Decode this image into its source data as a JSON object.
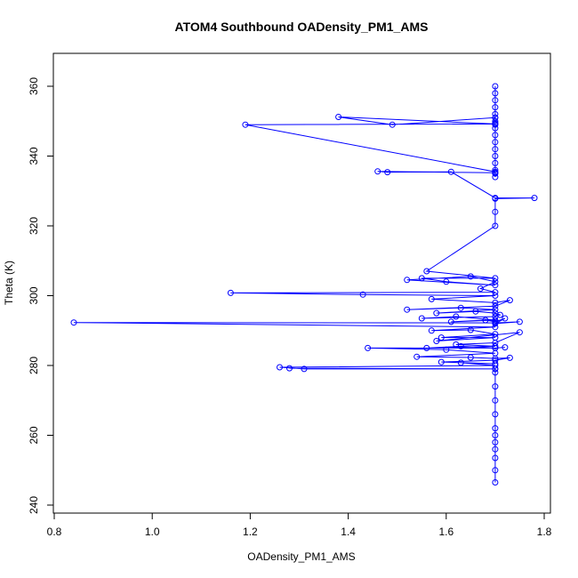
{
  "chart_data": {
    "type": "scatter",
    "title": "ATOM4 Southbound OADensity_PM1_AMS",
    "xlabel": "OADensity_PM1_AMS",
    "ylabel": "Theta (K)",
    "xlim": [
      0.8,
      1.8
    ],
    "ylim": [
      240,
      370
    ],
    "xticks": [
      "0.8",
      "1.0",
      "1.2",
      "1.4",
      "1.6",
      "1.8"
    ],
    "yticks": [
      "240",
      "260",
      "280",
      "300",
      "320",
      "340",
      "360"
    ],
    "grid": false,
    "legend": "none",
    "color": "#0000ff",
    "style": "points connected by lines",
    "series": [
      {
        "x": [
          1.7,
          1.7,
          1.7,
          1.7,
          1.7,
          1.7,
          1.7,
          1.7,
          1.7,
          1.7,
          1.7,
          1.7,
          1.7,
          1.7,
          1.7,
          1.7,
          1.7,
          1.7,
          1.7,
          1.49,
          1.38,
          1.7,
          1.19,
          1.7,
          1.7,
          1.46,
          1.48,
          1.61,
          1.7,
          1.78,
          1.7,
          1.7,
          1.7,
          1.56,
          1.7,
          1.55,
          1.6,
          1.7,
          1.52,
          1.65,
          1.7,
          1.67,
          1.7,
          1.16,
          1.43,
          1.7,
          1.57,
          1.7,
          1.73,
          1.7,
          1.52,
          1.63,
          1.7,
          1.58,
          1.66,
          1.7,
          1.71,
          1.7,
          1.55,
          1.62,
          1.7,
          1.61,
          1.68,
          1.7,
          1.72,
          1.7,
          1.75,
          1.7,
          0.84,
          1.7,
          1.57,
          1.65,
          1.7,
          1.59,
          1.7,
          1.58,
          1.75,
          1.7,
          1.62,
          1.7,
          1.56,
          1.63,
          1.7,
          1.72,
          1.7,
          1.44,
          1.6,
          1.7,
          1.54,
          1.65,
          1.7,
          1.73,
          1.7,
          1.59,
          1.7,
          1.63,
          1.7,
          1.26,
          1.31,
          1.7,
          1.28,
          1.7,
          1.7,
          1.7,
          1.7,
          1.7,
          1.7,
          1.7,
          1.7,
          1.7,
          1.7,
          1.7,
          1.7
        ],
        "y": [
          360,
          358,
          356,
          354,
          352,
          351,
          350,
          349.5,
          349,
          348,
          346,
          344,
          342,
          340,
          338,
          336,
          335,
          334,
          351,
          349,
          351.2,
          349.2,
          349,
          335.5,
          335.2,
          335.6,
          335.4,
          335.5,
          328,
          328,
          327.8,
          324,
          320,
          307,
          305,
          305,
          304,
          303,
          304.5,
          305.5,
          304,
          302,
          301,
          300.8,
          300.3,
          300,
          299,
          298,
          298.7,
          297,
          296,
          296.5,
          296,
          295,
          295.5,
          295,
          294.5,
          294,
          293.5,
          294,
          293,
          292.5,
          293,
          292.5,
          293.5,
          292,
          292.5,
          292.2,
          292.3,
          291,
          290,
          290.2,
          289,
          288,
          288,
          287,
          289.5,
          286.5,
          286,
          285.5,
          285,
          285.5,
          285,
          285.2,
          285,
          285,
          284.5,
          283.5,
          282.5,
          282.3,
          282,
          282.2,
          281.5,
          281,
          280.5,
          280.8,
          280,
          279.5,
          279,
          279,
          279.2,
          279,
          278,
          274,
          270,
          266,
          262,
          260,
          258,
          256,
          253.5,
          250,
          246.5
        ]
      }
    ]
  }
}
